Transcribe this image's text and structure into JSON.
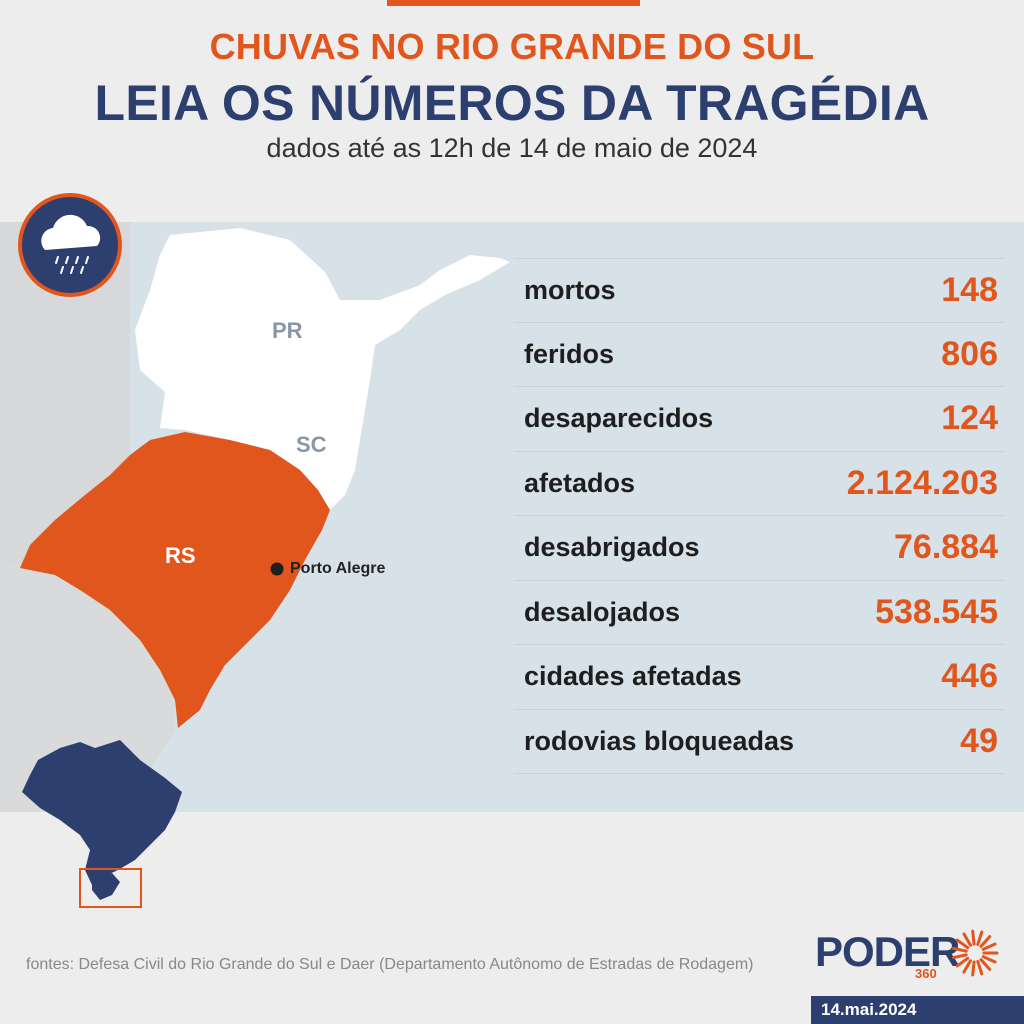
{
  "header": {
    "kicker": "CHUVAS NO RIO GRANDE DO SUL",
    "headline": "LEIA OS NÚMEROS DA TRAGÉDIA",
    "subtitle": "dados até as 12h de 14 de maio de 2024"
  },
  "map": {
    "labels": {
      "pr": "PR",
      "sc": "SC",
      "rs": "RS",
      "city": "Porto Alegre"
    },
    "colors": {
      "highlight": "#e0561c",
      "ocean": "#d7e1e8",
      "land": "#ffffff",
      "neighbor": "#d6d8da",
      "brazil": "#2d3f6e"
    },
    "icon": "rain-cloud-icon"
  },
  "stats": [
    {
      "label": "mortos",
      "value": "148"
    },
    {
      "label": "feridos",
      "value": "806"
    },
    {
      "label": "desaparecidos",
      "value": "124"
    },
    {
      "label": "afetados",
      "value": "2.124.203"
    },
    {
      "label": "desabrigados",
      "value": "76.884"
    },
    {
      "label": "desalojados",
      "value": "538.545"
    },
    {
      "label": "cidades afetadas",
      "value": "446"
    },
    {
      "label": "rodovias bloqueadas",
      "value": "49"
    }
  ],
  "footer": {
    "source": "fontes: Defesa Civil do Rio Grande do Sul e Daer (Departamento Autônomo de Estradas de Rodagem)",
    "logo_text": "PODER",
    "logo_sub": "360",
    "date": "14.mai.2024"
  }
}
